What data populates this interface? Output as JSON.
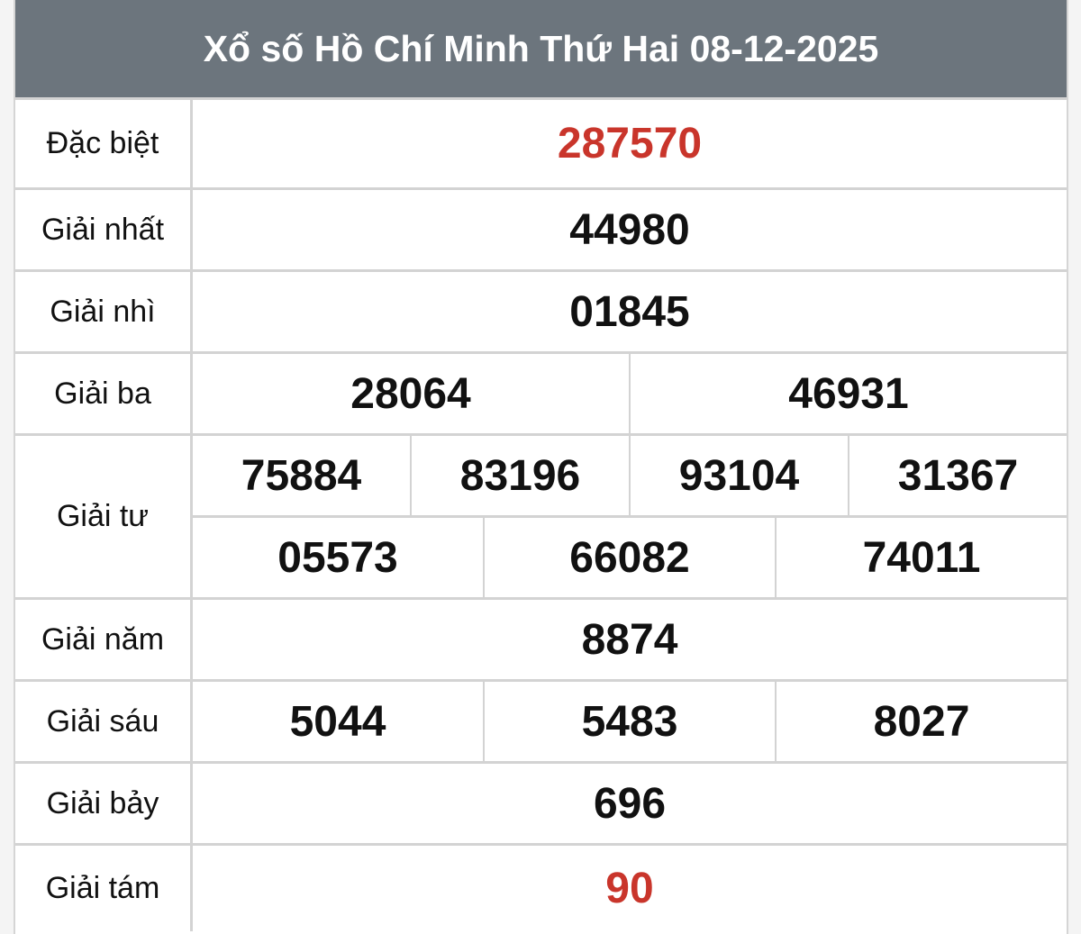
{
  "title": "Xổ số Hồ Chí Minh Thứ Hai 08-12-2025",
  "colors": {
    "header": "#6c757d",
    "highlight": "#c9352b"
  },
  "prizes": [
    {
      "label": "Đặc biệt",
      "rows": [
        [
          "287570"
        ]
      ]
    },
    {
      "label": "Giải nhất",
      "rows": [
        [
          "44980"
        ]
      ]
    },
    {
      "label": "Giải nhì",
      "rows": [
        [
          "01845"
        ]
      ]
    },
    {
      "label": "Giải ba",
      "rows": [
        [
          "28064",
          "46931"
        ]
      ]
    },
    {
      "label": "Giải tư",
      "rows": [
        [
          "75884",
          "83196",
          "93104",
          "31367"
        ],
        [
          "05573",
          "66082",
          "74011"
        ]
      ]
    },
    {
      "label": "Giải năm",
      "rows": [
        [
          "8874"
        ]
      ]
    },
    {
      "label": "Giải sáu",
      "rows": [
        [
          "5044",
          "5483",
          "8027"
        ]
      ]
    },
    {
      "label": "Giải bảy",
      "rows": [
        [
          "696"
        ]
      ]
    },
    {
      "label": "Giải tám",
      "rows": [
        [
          "90"
        ]
      ]
    }
  ]
}
